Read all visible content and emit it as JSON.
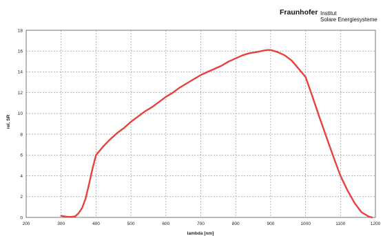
{
  "logo": {
    "brand": "Fraunhofer",
    "line1": "Institut",
    "line2": "Solare Energiesysteme"
  },
  "chart_data": {
    "type": "line",
    "title": "",
    "xlabel": "lambda [nm]",
    "ylabel": "rel. SR",
    "xlim": [
      200,
      1200
    ],
    "ylim": [
      0,
      18
    ],
    "xticks": [
      200,
      300,
      400,
      500,
      600,
      700,
      800,
      900,
      1000,
      1100,
      1200
    ],
    "yticks": [
      0,
      2,
      4,
      6,
      8,
      10,
      12,
      14,
      16,
      18
    ],
    "grid": true,
    "legend": "none",
    "series": [
      {
        "color": "#e8403a",
        "x": [
          300,
          310,
          320,
          330,
          340,
          350,
          360,
          370,
          380,
          390,
          400,
          410,
          420,
          440,
          460,
          480,
          500,
          520,
          540,
          560,
          580,
          600,
          620,
          640,
          660,
          680,
          700,
          720,
          740,
          760,
          780,
          800,
          820,
          840,
          860,
          880,
          890,
          900,
          920,
          940,
          960,
          980,
          1000,
          1020,
          1040,
          1060,
          1080,
          1100,
          1120,
          1140,
          1160,
          1180,
          1190
        ],
        "y": [
          0.15,
          0.1,
          0.05,
          0.05,
          0.1,
          0.4,
          0.9,
          1.8,
          3.2,
          4.7,
          6.0,
          6.4,
          6.8,
          7.5,
          8.1,
          8.6,
          9.2,
          9.7,
          10.2,
          10.6,
          11.1,
          11.6,
          12.0,
          12.5,
          12.9,
          13.3,
          13.7,
          14.0,
          14.3,
          14.6,
          15.0,
          15.3,
          15.6,
          15.8,
          15.9,
          16.05,
          16.1,
          16.1,
          15.9,
          15.6,
          15.1,
          14.3,
          13.5,
          11.6,
          9.6,
          7.7,
          5.8,
          4.0,
          2.6,
          1.4,
          0.5,
          0.1,
          0.0
        ]
      }
    ]
  }
}
